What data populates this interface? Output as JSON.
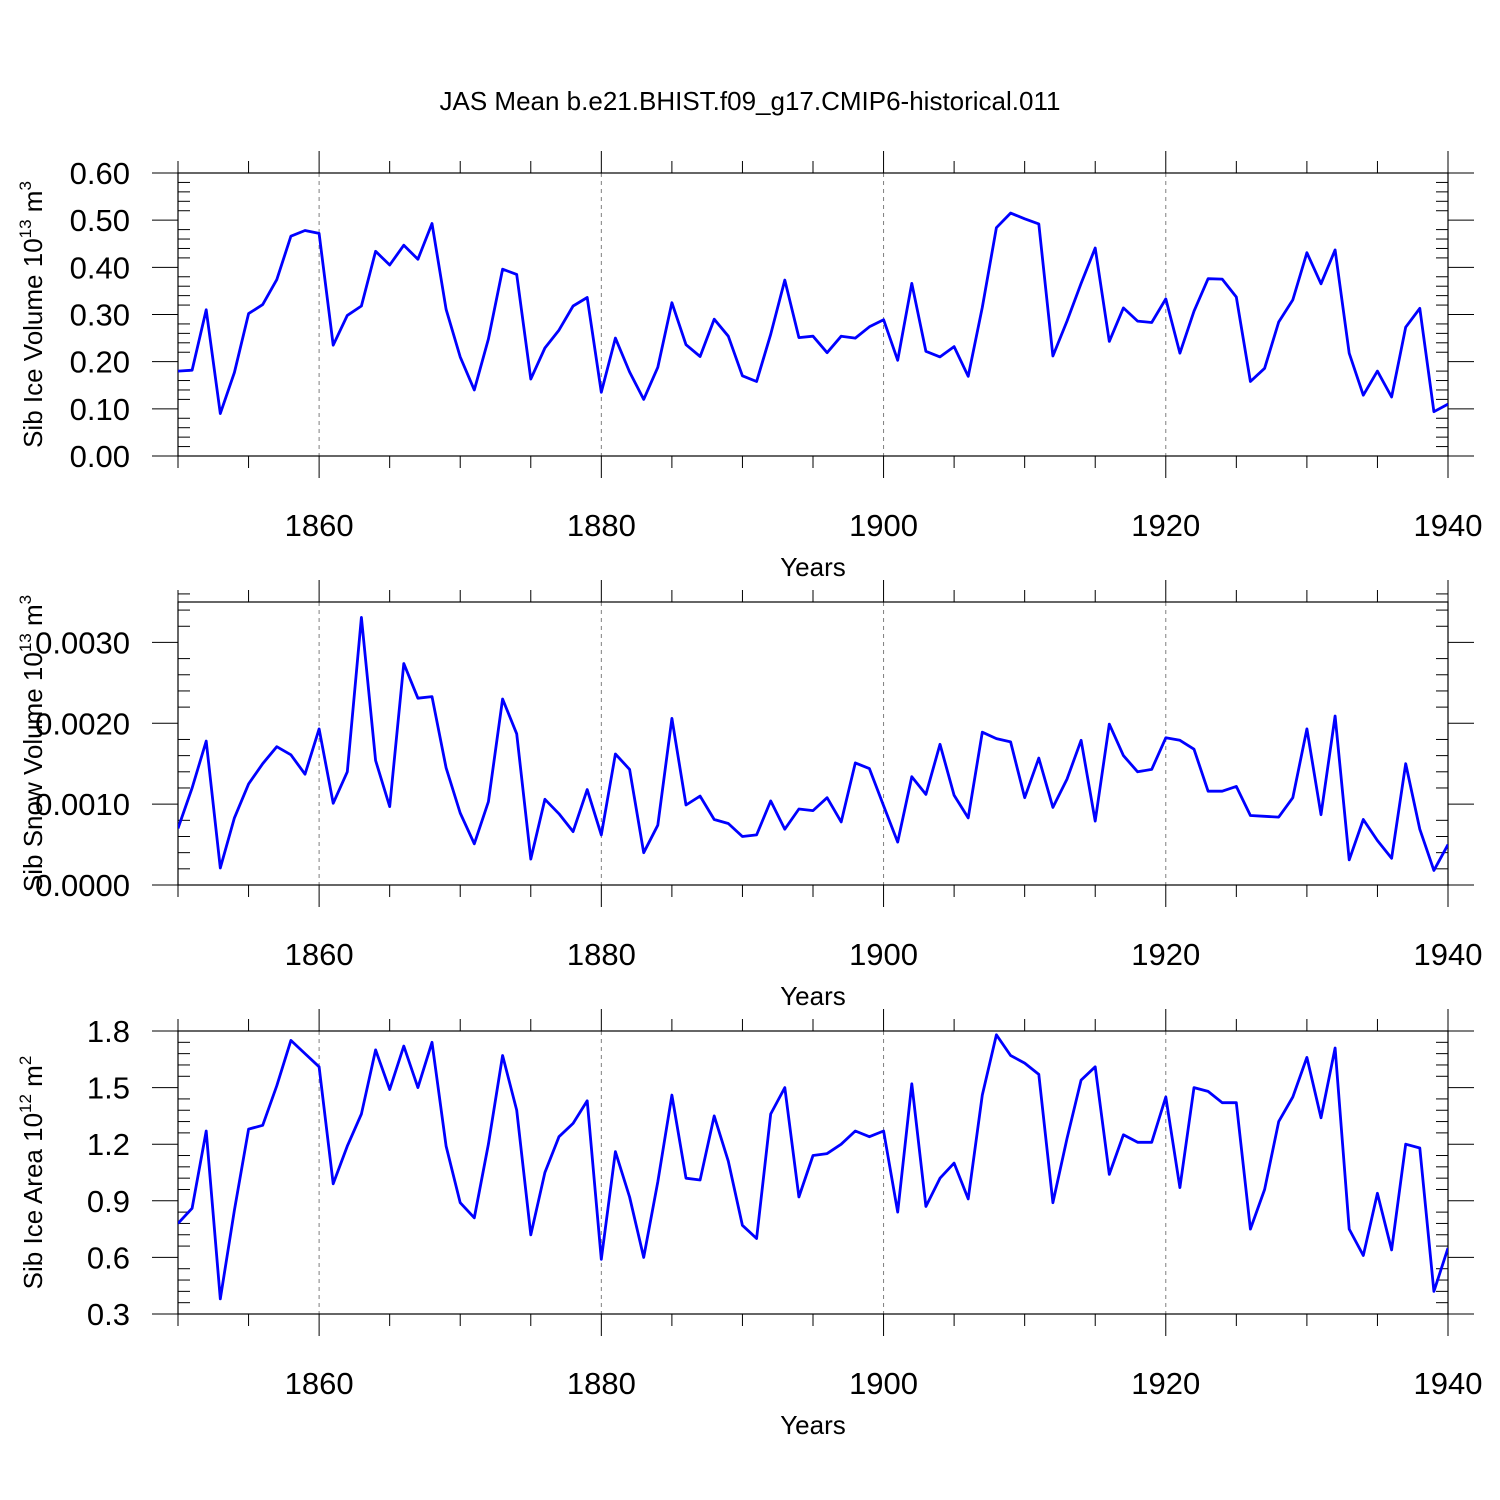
{
  "figure_title": "JAS Mean b.e21.BHIST.f09_g17.CMIP6-historical.011",
  "colors": {
    "line": "#0000ff",
    "axis": "#000000",
    "grid": "#7f7f7f"
  },
  "chart_data": [
    {
      "type": "line",
      "title": "JAS Mean b.e21.BHIST.f09_g17.CMIP6-historical.011",
      "xlabel": "Years",
      "ylabel": "Sib Ice Volume 10",
      "ylabel_exp": "13",
      "ylabel_unit": " m",
      "ylabel_unit_exp": "3",
      "xlim": [
        1850,
        1940
      ],
      "ylim": [
        0.0,
        0.6
      ],
      "xticks": [
        1860,
        1880,
        1900,
        1920,
        1940
      ],
      "yticks": [
        0.0,
        0.1,
        0.2,
        0.3,
        0.4,
        0.5,
        0.6
      ],
      "ytick_labels": [
        "0.00",
        "0.10",
        "0.20",
        "0.30",
        "0.40",
        "0.50",
        "0.60"
      ],
      "grid": "vertical dashed at major x ticks",
      "x_start": 1850,
      "values": [
        0.18,
        0.182,
        0.31,
        0.09,
        0.177,
        0.302,
        0.321,
        0.374,
        0.466,
        0.478,
        0.472,
        0.235,
        0.298,
        0.318,
        0.434,
        0.405,
        0.447,
        0.417,
        0.493,
        0.311,
        0.21,
        0.14,
        0.248,
        0.396,
        0.385,
        0.163,
        0.229,
        0.267,
        0.318,
        0.336,
        0.135,
        0.25,
        0.178,
        0.12,
        0.188,
        0.325,
        0.236,
        0.211,
        0.29,
        0.254,
        0.17,
        0.158,
        0.258,
        0.373,
        0.251,
        0.254,
        0.219,
        0.254,
        0.25,
        0.274,
        0.289,
        0.203,
        0.366,
        0.222,
        0.21,
        0.232,
        0.169,
        0.315,
        0.484,
        0.515,
        0.503,
        0.492,
        0.212,
        0.286,
        0.366,
        0.441,
        0.243,
        0.314,
        0.286,
        0.283,
        0.333,
        0.218,
        0.307,
        0.376,
        0.375,
        0.337,
        0.158,
        0.186,
        0.284,
        0.331,
        0.431,
        0.365,
        0.437,
        0.218,
        0.129,
        0.18,
        0.125,
        0.273,
        0.313,
        0.094,
        0.11
      ]
    },
    {
      "type": "line",
      "xlabel": "Years",
      "ylabel": "Sib Snow Volume 10",
      "ylabel_exp": "13",
      "ylabel_unit": " m",
      "ylabel_unit_exp": "3",
      "xlim": [
        1850,
        1940
      ],
      "ylim": [
        0.0,
        0.0035
      ],
      "xticks": [
        1860,
        1880,
        1900,
        1920,
        1940
      ],
      "yticks": [
        0.0,
        0.001,
        0.002,
        0.003
      ],
      "ytick_labels": [
        "0.0000",
        "0.0010",
        "0.0020",
        "0.0030"
      ],
      "grid": "vertical dashed at major x ticks",
      "x_start": 1850,
      "values": [
        0.0007,
        0.0012,
        0.00178,
        0.00021,
        0.00083,
        0.00125,
        0.0015,
        0.00171,
        0.00161,
        0.00137,
        0.00193,
        0.00101,
        0.0014,
        0.00331,
        0.00154,
        0.00097,
        0.00274,
        0.00231,
        0.00233,
        0.00145,
        0.00089,
        0.00051,
        0.00103,
        0.0023,
        0.00187,
        0.00032,
        0.00106,
        0.00088,
        0.00066,
        0.00118,
        0.00062,
        0.00162,
        0.00143,
        0.0004,
        0.00074,
        0.00206,
        0.00099,
        0.0011,
        0.00081,
        0.00076,
        0.0006,
        0.00062,
        0.00104,
        0.00069,
        0.00094,
        0.00092,
        0.00108,
        0.00078,
        0.00151,
        0.00144,
        0.00098,
        0.00053,
        0.00134,
        0.00112,
        0.00174,
        0.00111,
        0.00083,
        0.00189,
        0.00181,
        0.00177,
        0.00108,
        0.00157,
        0.00096,
        0.00131,
        0.00179,
        0.00079,
        0.00199,
        0.0016,
        0.0014,
        0.00143,
        0.00182,
        0.00179,
        0.00168,
        0.00116,
        0.00116,
        0.00122,
        0.00086,
        0.00085,
        0.00084,
        0.00108,
        0.00193,
        0.00087,
        0.00209,
        0.00031,
        0.00081,
        0.00055,
        0.00033,
        0.0015,
        0.00069,
        0.00018,
        0.0005
      ]
    },
    {
      "type": "line",
      "xlabel": "Years",
      "ylabel": "Sib Ice Area 10",
      "ylabel_exp": "12",
      "ylabel_unit": " m",
      "ylabel_unit_exp": "2",
      "xlim": [
        1850,
        1940
      ],
      "ylim": [
        0.3,
        1.8
      ],
      "xticks": [
        1860,
        1880,
        1900,
        1920,
        1940
      ],
      "yticks": [
        0.3,
        0.6,
        0.9,
        1.2,
        1.5,
        1.8
      ],
      "ytick_labels": [
        "0.3",
        "0.6",
        "0.9",
        "1.2",
        "1.5",
        "1.8"
      ],
      "grid": "vertical dashed at major x ticks",
      "x_start": 1850,
      "values": [
        0.78,
        0.86,
        1.27,
        0.38,
        0.85,
        1.28,
        1.3,
        1.51,
        1.75,
        1.68,
        1.61,
        0.99,
        1.19,
        1.36,
        1.7,
        1.49,
        1.72,
        1.5,
        1.74,
        1.19,
        0.89,
        0.81,
        1.2,
        1.67,
        1.38,
        0.72,
        1.05,
        1.24,
        1.31,
        1.43,
        0.59,
        1.16,
        0.92,
        0.6,
        1.0,
        1.46,
        1.02,
        1.01,
        1.35,
        1.11,
        0.77,
        0.7,
        1.36,
        1.5,
        0.92,
        1.14,
        1.15,
        1.2,
        1.27,
        1.24,
        1.27,
        0.84,
        1.52,
        0.87,
        1.02,
        1.1,
        0.91,
        1.46,
        1.78,
        1.67,
        1.63,
        1.57,
        0.89,
        1.23,
        1.54,
        1.61,
        1.04,
        1.25,
        1.21,
        1.21,
        1.45,
        0.97,
        1.5,
        1.48,
        1.42,
        1.42,
        0.75,
        0.96,
        1.32,
        1.45,
        1.66,
        1.34,
        1.71,
        0.75,
        0.61,
        0.94,
        0.64,
        1.2,
        1.18,
        0.42,
        0.65
      ]
    }
  ]
}
